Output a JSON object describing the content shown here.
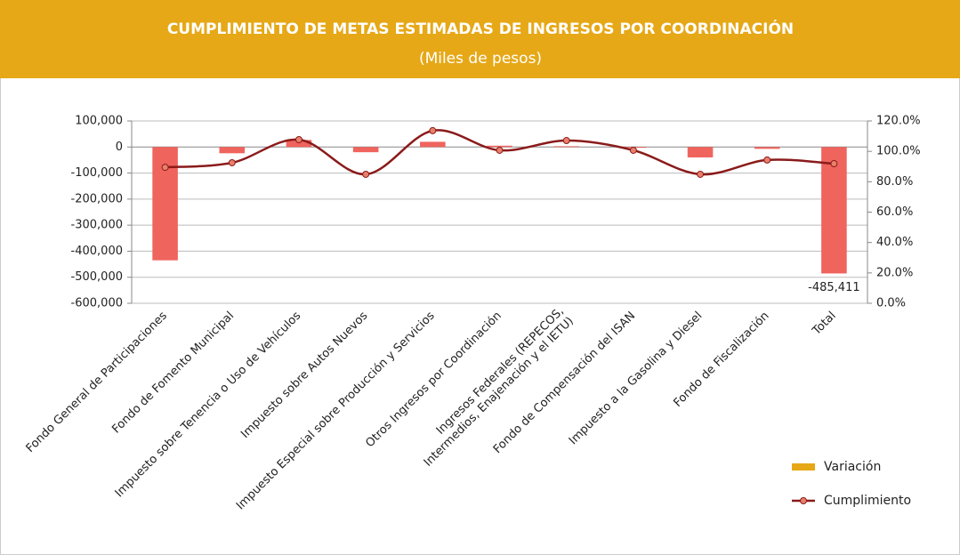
{
  "chart_data": {
    "type": "bar_line",
    "title": "CUMPLIMIENTO DE METAS ESTIMADAS DE INGRESOS POR COORDINACIÓN",
    "subtitle": "(Miles de pesos)",
    "categories": [
      "Fondo General de Participaciones",
      "Fondo de Fomento Municipal",
      "Impuesto sobre Tenencia o Uso de Vehículos",
      "Impuesto sobre Autos Nuevos",
      "Impuesto Especial sobre Producción y Servicios",
      "Otros Ingresos por Coordinación",
      "Ingresos Federales (REPECOS, Intermedios, Enajenación y el IETU)",
      "Fondo de Compensación del ISAN",
      "Impuesto a la Gasolina y Diesel",
      "Fondo de Fiscalización",
      "Total"
    ],
    "series": [
      {
        "name": "Variación",
        "type": "bar",
        "color": "#f0645e",
        "legend_color": "#e6a817",
        "values": [
          -435000,
          -24000,
          27000,
          -20000,
          20000,
          5000,
          3000,
          -3000,
          -40000,
          -7000,
          -485411
        ],
        "value_labels": [
          null,
          null,
          null,
          null,
          null,
          null,
          null,
          null,
          null,
          null,
          "-485,411"
        ]
      },
      {
        "name": "Cumplimiento",
        "type": "line",
        "axis": "y2",
        "color": "#8b1a1a",
        "marker_color": "#e8806a",
        "values": [
          89.5,
          92.5,
          107.7,
          84.9,
          113.6,
          100.7,
          107.1,
          100.7,
          84.9,
          94.3,
          91.9
        ]
      }
    ],
    "ylim": [
      -600000,
      100000
    ],
    "yticks": [
      {
        "value": 100000,
        "label": "100,000"
      },
      0,
      {
        "value": -100000,
        "label": "-100,000"
      },
      {
        "value": -200000,
        "label": "-200,000"
      },
      {
        "value": -300000,
        "label": "-300,000"
      },
      {
        "value": -400000,
        "label": "-400,000"
      },
      {
        "value": -500000,
        "label": "-500,000"
      },
      {
        "value": -600000,
        "label": "-600,000"
      }
    ],
    "y2lim": [
      0,
      120
    ],
    "y2ticks": [
      {
        "value": 120,
        "label": "120.0%"
      },
      {
        "value": 100,
        "label": "100.0%"
      },
      {
        "value": 80,
        "label": "80.0%"
      },
      {
        "value": 60,
        "label": "60.0%"
      },
      {
        "value": 40,
        "label": "40.0%"
      },
      {
        "value": 20,
        "label": "20.0%"
      },
      {
        "value": 0,
        "label": "0.0%"
      }
    ],
    "grid": true,
    "legend": "bottom-right",
    "header_color": "#e6a817"
  }
}
